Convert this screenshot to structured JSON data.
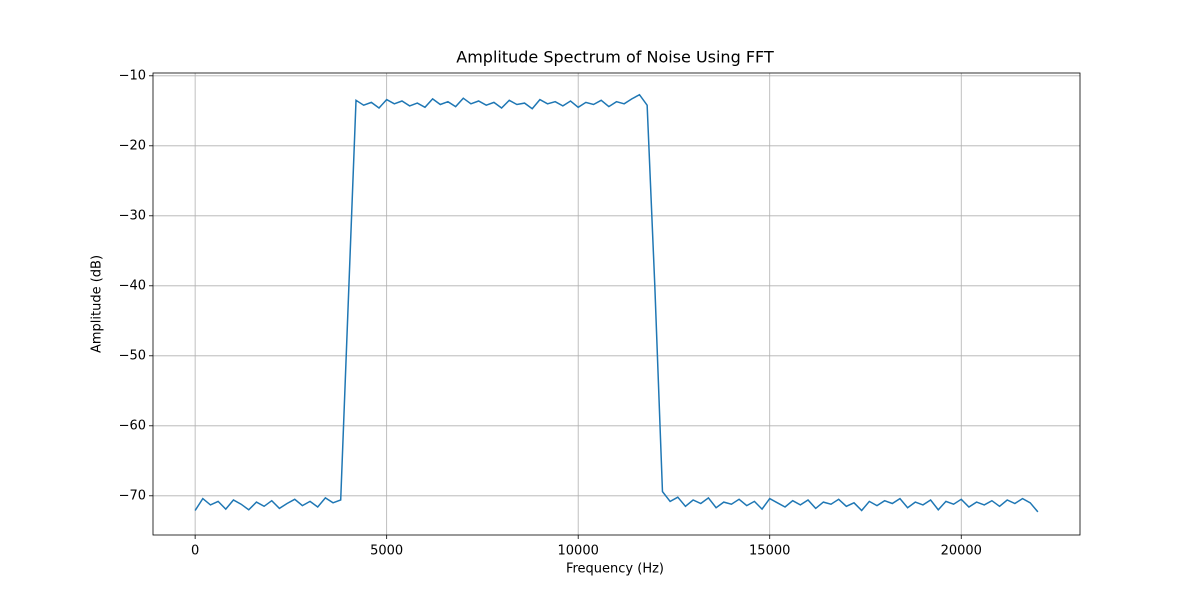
{
  "chart_data": {
    "type": "line",
    "title": "Amplitude Spectrum of Noise Using FFT",
    "x_label": "Frequency (Hz)",
    "y_label": "Amplitude (dB)",
    "x": [
      0,
      200,
      400,
      600,
      800,
      1000,
      1200,
      1400,
      1600,
      1800,
      2000,
      2200,
      2400,
      2600,
      2800,
      3000,
      3200,
      3400,
      3600,
      3800,
      4000,
      4200,
      4400,
      4600,
      4800,
      5000,
      5200,
      5400,
      5600,
      5800,
      6000,
      6200,
      6400,
      6600,
      6800,
      7000,
      7200,
      7400,
      7600,
      7800,
      8000,
      8200,
      8400,
      8600,
      8800,
      9000,
      9200,
      9400,
      9600,
      9800,
      10000,
      10200,
      10400,
      10600,
      10800,
      11000,
      11200,
      11400,
      11600,
      11800,
      12000,
      12200,
      12400,
      12600,
      12800,
      13000,
      13200,
      13400,
      13600,
      13800,
      14000,
      14200,
      14400,
      14600,
      14800,
      15000,
      15200,
      15400,
      15600,
      15800,
      16000,
      16200,
      16400,
      16600,
      16800,
      17000,
      17200,
      17400,
      17600,
      17800,
      18000,
      18200,
      18400,
      18600,
      18800,
      19000,
      19200,
      19400,
      19600,
      19800,
      20000,
      20200,
      20400,
      20600,
      20800,
      21000,
      21200,
      21400,
      21600,
      21800,
      22000
    ],
    "series": [
      {
        "color": "#1f77b4",
        "values": [
          -72.1,
          -70.4,
          -71.3,
          -70.8,
          -71.9,
          -70.6,
          -71.2,
          -72.0,
          -70.9,
          -71.5,
          -70.7,
          -71.8,
          -71.1,
          -70.5,
          -71.4,
          -70.8,
          -71.6,
          -70.3,
          -71.0,
          -70.6,
          -42,
          -13.5,
          -14.2,
          -13.8,
          -14.6,
          -13.4,
          -14.0,
          -13.6,
          -14.3,
          -13.9,
          -14.5,
          -13.3,
          -14.1,
          -13.7,
          -14.4,
          -13.2,
          -14.0,
          -13.6,
          -14.2,
          -13.8,
          -14.6,
          -13.5,
          -14.1,
          -13.9,
          -14.7,
          -13.4,
          -14.0,
          -13.7,
          -14.3,
          -13.6,
          -14.5,
          -13.8,
          -14.1,
          -13.5,
          -14.4,
          -13.7,
          -14.0,
          -13.3,
          -12.7,
          -14.2,
          -40,
          -69.4,
          -70.8,
          -70.2,
          -71.5,
          -70.6,
          -71.1,
          -70.3,
          -71.7,
          -70.9,
          -71.2,
          -70.5,
          -71.4,
          -70.8,
          -71.9,
          -70.4,
          -71.0,
          -71.6,
          -70.7,
          -71.3,
          -70.6,
          -71.8,
          -70.9,
          -71.2,
          -70.5,
          -71.5,
          -71.0,
          -72.1,
          -70.8,
          -71.4,
          -70.7,
          -71.1,
          -70.4,
          -71.7,
          -70.9,
          -71.3,
          -70.6,
          -72.0,
          -70.8,
          -71.2,
          -70.5,
          -71.6,
          -70.9,
          -71.3,
          -70.7,
          -71.5,
          -70.6,
          -71.1,
          -70.4,
          -71.0,
          -72.3
        ]
      }
    ],
    "xlim": [
      -1100,
      23100
    ],
    "ylim": [
      -75.6,
      -9.6
    ],
    "xticks": [
      0,
      5000,
      10000,
      15000,
      20000
    ],
    "yticks": [
      {
        "value": -70,
        "label": "−70"
      },
      {
        "value": -60,
        "label": "−60"
      },
      {
        "value": -50,
        "label": "−50"
      },
      {
        "value": -40,
        "label": "−40"
      },
      {
        "value": -30,
        "label": "−30"
      },
      {
        "value": -20,
        "label": "−20"
      },
      {
        "value": -10,
        "label": "−10"
      }
    ],
    "grid": true
  }
}
